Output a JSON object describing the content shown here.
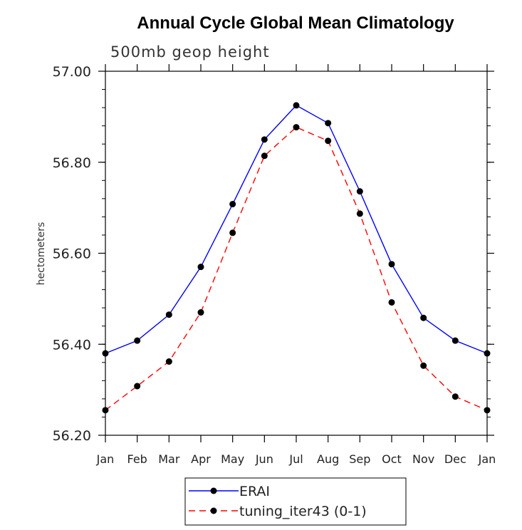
{
  "chart_data": {
    "type": "line",
    "title": "Annual Cycle Global Mean Climatology",
    "subtitle": "500mb geop height",
    "xlabel": "",
    "ylabel": "hectometers",
    "categories": [
      "Jan",
      "Feb",
      "Mar",
      "Apr",
      "May",
      "Jun",
      "Jul",
      "Aug",
      "Sep",
      "Oct",
      "Nov",
      "Dec",
      "Jan"
    ],
    "ylim": [
      56.2,
      57.0
    ],
    "yticks": [
      "56.20",
      "56.40",
      "56.60",
      "56.80",
      "57.00"
    ],
    "ytick_values": [
      56.2,
      56.4,
      56.6,
      56.8,
      57.0
    ],
    "series": [
      {
        "name": "ERAI",
        "color": "#0000ff",
        "dash": "solid",
        "values": [
          56.38,
          56.408,
          56.465,
          56.57,
          56.708,
          56.85,
          56.925,
          56.886,
          56.736,
          56.576,
          56.458,
          56.408,
          56.38
        ]
      },
      {
        "name": "tuning_iter43 (0-1)",
        "color": "#ff0000",
        "dash": "dashed",
        "values": [
          56.255,
          56.308,
          56.362,
          56.47,
          56.645,
          56.814,
          56.877,
          56.847,
          56.687,
          56.492,
          56.353,
          56.285,
          56.255
        ]
      }
    ],
    "legend": {
      "placement": "bottom-center"
    },
    "grid": false
  }
}
